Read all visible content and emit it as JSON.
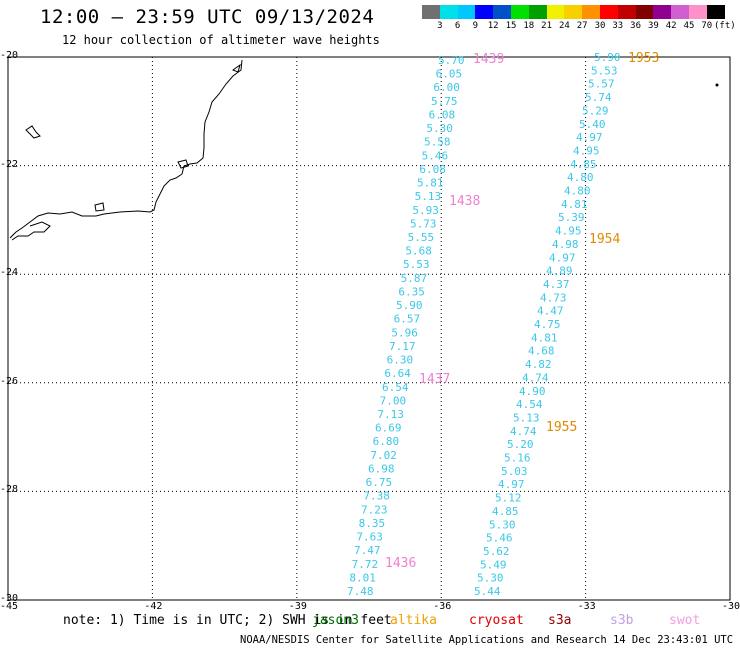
{
  "title": "12:00 – 23:59 UTC 09/13/2024",
  "subtitle": "12 hour collection of altimeter wave heights",
  "colorbar": {
    "labels": [
      "3",
      "6",
      "9",
      "12",
      "15",
      "18",
      "21",
      "24",
      "27",
      "30",
      "33",
      "36",
      "39",
      "42",
      "45",
      "70"
    ],
    "colors": [
      "#707070",
      "#00e0e8",
      "#00c8ff",
      "#0000ff",
      "#0050c8",
      "#00e000",
      "#00a000",
      "#f0f000",
      "#f8d000",
      "#ff9000",
      "#ff0000",
      "#c00000",
      "#800000",
      "#900090",
      "#d060d0",
      "#ff90c8",
      "#000000"
    ],
    "unit": "(ft)"
  },
  "lat_labels": [
    "-20",
    "-22",
    "-24",
    "-26",
    "-28",
    "-30"
  ],
  "lon_labels": [
    "-45",
    "-42",
    "-39",
    "-36",
    "-33",
    "-30"
  ],
  "track1_color": "#3cc8e8",
  "track2_color": "#3cc8e8",
  "time_color_1": "#f080d0",
  "time_color_2": "#e08a00",
  "track1": [
    "5.70",
    "6.05",
    "6.00",
    "5.75",
    "6.08",
    "5.30",
    "5.58",
    "5.46",
    "6.08",
    "5.81",
    "5.13",
    "5.93",
    "5.73",
    "5.55",
    "5.68",
    "5.53",
    "5.87",
    "6.35",
    "5.90",
    "6.57",
    "5.96",
    "7.17",
    "6.30",
    "6.64",
    "6.54",
    "7.00",
    "7.13",
    "6.69",
    "6.80",
    "7.02",
    "6.98",
    "6.75",
    "7.38",
    "7.23",
    "8.35",
    "7.63",
    "7.47",
    "7.72",
    "8.01",
    "7.48"
  ],
  "track1_times": [
    "1439",
    "1438",
    "1437",
    "1436"
  ],
  "track2": [
    "5.90",
    "5.53",
    "5.57",
    "5.74",
    "5.29",
    "5.40",
    "4.97",
    "4.95",
    "4.85",
    "4.80",
    "4.80",
    "4.81",
    "5.39",
    "4.95",
    "4.98",
    "4.97",
    "4.89",
    "4.37",
    "4.73",
    "4.47",
    "4.75",
    "4.81",
    "4.68",
    "4.82",
    "4.74",
    "4.90",
    "4.54",
    "5.13",
    "4.74",
    "5.20",
    "5.16",
    "5.03",
    "4.97",
    "5.12",
    "4.85",
    "5.30",
    "5.46",
    "5.62",
    "5.49",
    "5.30",
    "5.44"
  ],
  "track2_times": [
    "1953",
    "1954",
    "1955"
  ],
  "note": "note: 1) Time is in UTC; 2) SWH is in feet",
  "satellites": [
    {
      "name": "jason3",
      "color": "#007000"
    },
    {
      "name": "altika",
      "color": "#f0a000"
    },
    {
      "name": "cryosat",
      "color": "#e00000"
    },
    {
      "name": "s3a",
      "color": "#900000"
    },
    {
      "name": "s3b",
      "color": "#c0a0e0"
    },
    {
      "name": "swot",
      "color": "#f0a0e0"
    }
  ],
  "footer": "NOAA/NESDIS Center for Satellite Applications and Research   14 Dec 23:43:01 UTC 2024"
}
